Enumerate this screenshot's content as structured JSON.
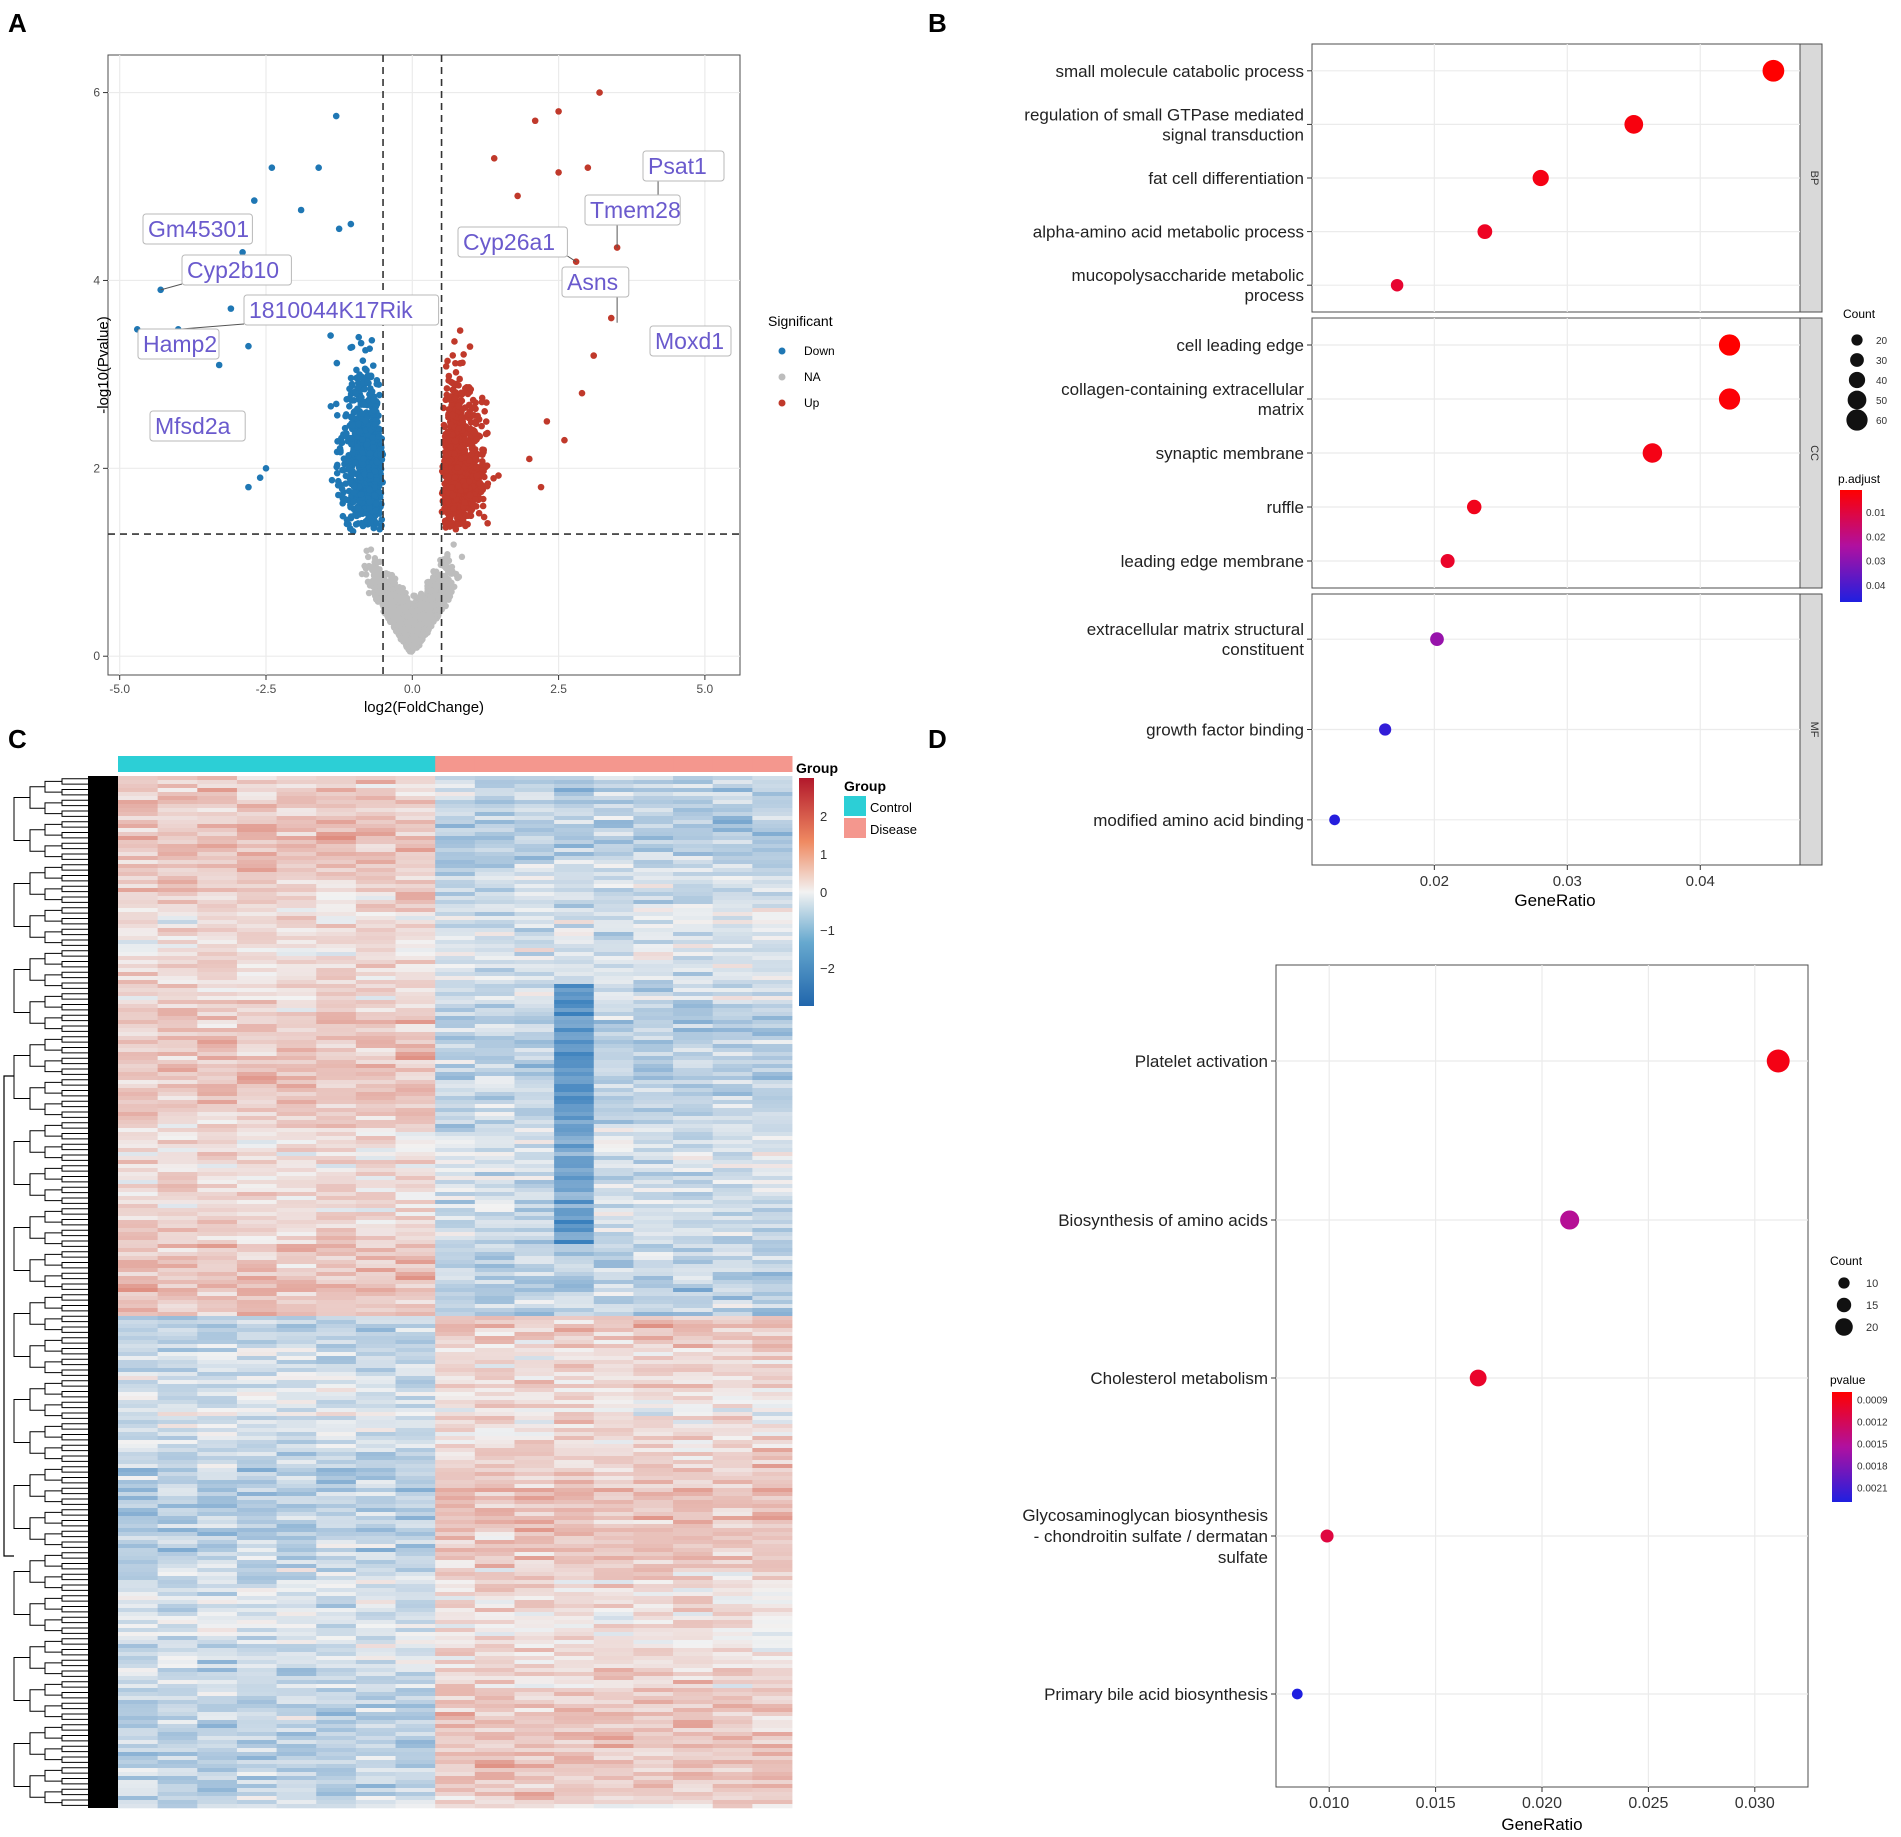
{
  "figure": {
    "panel_letters": [
      "A",
      "B",
      "C",
      "D"
    ]
  },
  "colors": {
    "down": "#1f77b4",
    "na": "#bdbdbd",
    "up": "#c0392b",
    "label": "#6a5acd",
    "strip": "#d9d9d9",
    "grid": "#ebebeb",
    "control": "#2ccfd6",
    "disease": "#f4978e",
    "heat_low": "#2b6cb0",
    "heat_mid": "#f2f2f2",
    "heat_high": "#b2182b",
    "padj_low": "#ee1c25",
    "padj_high": "#1f1fe0"
  },
  "chart_data": [
    {
      "panel": "A",
      "type": "scatter",
      "xlabel": "log2(FoldChange)",
      "ylabel": "-log10(Pvalue)",
      "xlim": [
        -5.2,
        5.6
      ],
      "ylim": [
        -0.2,
        6.4
      ],
      "xticks": [
        -5.0,
        -2.5,
        0.0,
        2.5,
        5.0
      ],
      "xtick_labels": [
        "-5.0",
        "-2.5",
        "0.0",
        "2.5",
        "5.0"
      ],
      "yticks": [
        0,
        2,
        4,
        6
      ],
      "ytick_labels": [
        "0",
        "2",
        "4",
        "6"
      ],
      "thresholds": {
        "fc": [
          -0.5,
          0.5
        ],
        "p": 1.3
      },
      "legend": {
        "title": "Significant",
        "items": [
          "Down",
          "NA",
          "Up"
        ],
        "position": "right"
      },
      "labeled_genes": [
        {
          "gene": "Psat1",
          "x": 4.2,
          "y": 4.8
        },
        {
          "gene": "Tmem28",
          "x": 3.5,
          "y": 4.35
        },
        {
          "gene": "Cyp26a1",
          "x": 2.8,
          "y": 4.2
        },
        {
          "gene": "Asns",
          "x": 3.5,
          "y": 3.55
        },
        {
          "gene": "Moxd1",
          "x": 5.2,
          "y": 3.45
        },
        {
          "gene": "Gm45301",
          "x": -3.5,
          "y": 4.6
        },
        {
          "gene": "Cyp2b10",
          "x": -4.3,
          "y": 3.9
        },
        {
          "gene": "1810044K17Rik",
          "x": -4.0,
          "y": 3.48
        },
        {
          "gene": "Hamp2",
          "x": -4.7,
          "y": 3.48
        },
        {
          "gene": "Mfsd2a",
          "x": -3.6,
          "y": 2.5
        }
      ]
    },
    {
      "panel": "B",
      "type": "scatter",
      "xlabel": "GeneRatio",
      "xlim": [
        0.0108,
        0.0475
      ],
      "xticks": [
        0.02,
        0.03,
        0.04
      ],
      "xtick_labels": [
        "0.02",
        "0.03",
        "0.04"
      ],
      "facets": [
        {
          "name": "BP",
          "terms": [
            {
              "label": [
                "small molecule catabolic process"
              ],
              "ratio": 0.0455,
              "count": 62,
              "padj": 0.001
            },
            {
              "label": [
                "regulation of small GTPase mediated",
                "signal transduction"
              ],
              "ratio": 0.035,
              "count": 50,
              "padj": 0.003
            },
            {
              "label": [
                "fat cell differentiation"
              ],
              "ratio": 0.028,
              "count": 40,
              "padj": 0.004
            },
            {
              "label": [
                "alpha-amino acid metabolic process"
              ],
              "ratio": 0.0238,
              "count": 34,
              "padj": 0.006
            },
            {
              "label": [
                "mucopolysaccharide metabolic",
                "process"
              ],
              "ratio": 0.0172,
              "count": 25,
              "padj": 0.008
            }
          ]
        },
        {
          "name": "CC",
          "terms": [
            {
              "label": [
                "cell leading edge"
              ],
              "ratio": 0.0422,
              "count": 60,
              "padj": 0.001
            },
            {
              "label": [
                "collagen-containing extracellular",
                "matrix"
              ],
              "ratio": 0.0422,
              "count": 60,
              "padj": 0.002
            },
            {
              "label": [
                "synaptic membrane"
              ],
              "ratio": 0.0364,
              "count": 53,
              "padj": 0.004
            },
            {
              "label": [
                "ruffle"
              ],
              "ratio": 0.023,
              "count": 33,
              "padj": 0.005
            },
            {
              "label": [
                "leading edge membrane"
              ],
              "ratio": 0.021,
              "count": 31,
              "padj": 0.007
            }
          ]
        },
        {
          "name": "MF",
          "terms": [
            {
              "label": [
                "extracellular matrix structural",
                "constituent"
              ],
              "ratio": 0.0202,
              "count": 30,
              "padj": 0.028
            },
            {
              "label": [
                "growth factor binding"
              ],
              "ratio": 0.0163,
              "count": 24,
              "padj": 0.044
            },
            {
              "label": [
                "modified amino acid binding"
              ],
              "ratio": 0.0125,
              "count": 18,
              "padj": 0.046
            }
          ]
        }
      ],
      "size_legend": {
        "title": "Count",
        "values": [
          20,
          30,
          40,
          50,
          60
        ]
      },
      "color_legend": {
        "title": "p.adjust",
        "ticks": [
          0.01,
          0.02,
          0.03,
          0.04
        ],
        "tick_labels": [
          "0.01",
          "0.02",
          "0.03",
          "0.04"
        ],
        "range": [
          0.001,
          0.047
        ]
      }
    },
    {
      "panel": "C",
      "type": "heatmap",
      "annotation_title": "Group",
      "groups": [
        "Control",
        "Control",
        "Control",
        "Control",
        "Control",
        "Control",
        "Control",
        "Control",
        "Disease",
        "Disease",
        "Disease",
        "Disease",
        "Disease",
        "Disease",
        "Disease",
        "Disease",
        "Disease"
      ],
      "legend": {
        "title": "Group",
        "items": [
          "Control",
          "Disease"
        ]
      },
      "scale_ticks": [
        2,
        1,
        0,
        -1,
        -2
      ],
      "scale_tick_labels": [
        "2",
        "1",
        "0",
        "−1",
        "−2"
      ],
      "scale_range": [
        -3,
        3
      ]
    },
    {
      "panel": "D",
      "type": "scatter",
      "xlabel": "GeneRatio",
      "xlim": [
        0.0075,
        0.0325
      ],
      "xticks": [
        0.01,
        0.015,
        0.02,
        0.025,
        0.03
      ],
      "xtick_labels": [
        "0.010",
        "0.015",
        "0.020",
        "0.025",
        "0.030"
      ],
      "terms": [
        {
          "label": [
            "Platelet activation"
          ],
          "ratio": 0.0311,
          "count": 22,
          "pvalue": 0.0009
        },
        {
          "label": [
            "Biosynthesis of amino acids"
          ],
          "ratio": 0.0213,
          "count": 17,
          "pvalue": 0.0015
        },
        {
          "label": [
            "Cholesterol metabolism"
          ],
          "ratio": 0.017,
          "count": 14,
          "pvalue": 0.001
        },
        {
          "label": [
            "Glycosaminoglycan biosynthesis",
            "- chondroitin sulfate / dermatan",
            "sulfate"
          ],
          "ratio": 0.0099,
          "count": 9,
          "pvalue": 0.0011
        },
        {
          "label": [
            "Primary bile acid biosynthesis"
          ],
          "ratio": 0.0085,
          "count": 6,
          "pvalue": 0.0023
        }
      ],
      "size_legend": {
        "title": "Count",
        "values": [
          10,
          15,
          20
        ]
      },
      "color_legend": {
        "title": "pvalue",
        "ticks": [
          0.0009,
          0.0012,
          0.0015,
          0.0018,
          0.0021
        ],
        "tick_labels": [
          "0.0009",
          "0.0012",
          "0.0015",
          "0.0018",
          "0.0021"
        ],
        "range": [
          0.0008,
          0.0023
        ]
      }
    }
  ]
}
